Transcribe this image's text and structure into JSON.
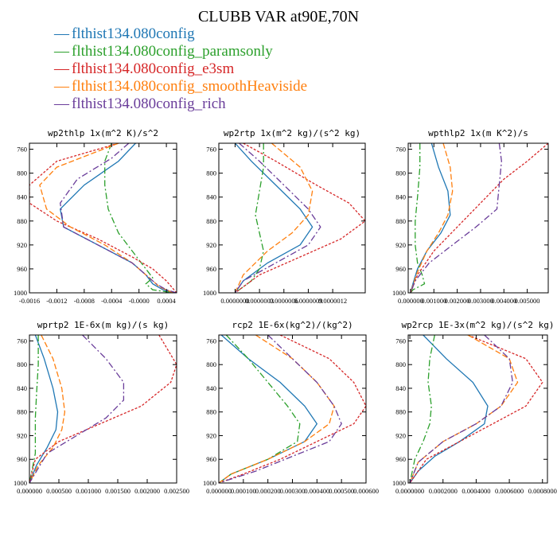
{
  "figure_title": "CLUBB VAR at90E,70N",
  "colors": {
    "flthist134.080config": "#1f77b4",
    "flthist134.080config_paramsonly": "#2ca02c",
    "flthist134.080config_e3sm": "#d62728",
    "flthist134.080config_smoothHeaviside": "#ff7f0e",
    "flthist134.080config_rich": "#6a3d9a"
  },
  "legend": [
    {
      "label": "flthist134.080config",
      "mark": "—"
    },
    {
      "label": "flthist134.080config_paramsonly",
      "mark": "—"
    },
    {
      "label": "flthist134.080config_e3sm",
      "mark": "—"
    },
    {
      "label": "flthist134.080config_smoothHeaviside",
      "mark": "—"
    },
    {
      "label": "flthist134.080config_rich",
      "mark": "—"
    }
  ],
  "chart_data": [
    {
      "type": "line",
      "title": "wp2thlp  1x(m^2 K)/s^2",
      "xlim": [
        -0.0016,
        0.00055
      ],
      "ylim": [
        1000,
        750
      ],
      "xticks": [
        -0.0016,
        -0.0012,
        -0.0008,
        -0.0004,
        -0.0,
        0.0004
      ],
      "xtick_labels": [
        "-0.0016",
        "-0.0012",
        "-0.0008",
        "-0.0004",
        "-0.0000",
        "0.0004"
      ],
      "yticks": [
        760,
        800,
        840,
        880,
        920,
        960,
        1000
      ],
      "series": [
        {
          "name": "flthist134.080config",
          "dash": "",
          "x": [
            -5e-05,
            -0.0003,
            -0.0008,
            -0.00115,
            -0.0011,
            -0.0006,
            -0.0001,
            0.0001,
            0.0002,
            0.00035,
            0.0005
          ],
          "y": [
            750,
            780,
            820,
            860,
            890,
            920,
            950,
            970,
            985,
            995,
            1000
          ]
        },
        {
          "name": "flthist134.080config_paramsonly",
          "dash": "8,3,2,3",
          "x": [
            -0.0004,
            -0.0005,
            -0.0005,
            -0.00045,
            -0.0003,
            -0.0001,
            0.0001,
            0.0002,
            0.0001,
            0.0002,
            0.0005
          ],
          "y": [
            750,
            780,
            820,
            860,
            900,
            930,
            960,
            975,
            985,
            995,
            1000
          ]
        },
        {
          "name": "flthist134.080config_e3sm",
          "dash": "3,2",
          "x": [
            -0.0003,
            -0.0012,
            -0.0016,
            -0.0016,
            -0.0012,
            -0.0006,
            -0.0001,
            0.0002,
            0.0004,
            0.00055
          ],
          "y": [
            750,
            780,
            820,
            850,
            880,
            910,
            940,
            960,
            980,
            1000
          ]
        },
        {
          "name": "flthist134.080config_smoothHeaviside",
          "dash": "7,3",
          "x": [
            -0.0003,
            -0.0012,
            -0.00145,
            -0.00135,
            -0.001,
            -0.0005,
            -0.0001,
            0.0001,
            0.0003,
            0.0005
          ],
          "y": [
            750,
            790,
            820,
            860,
            890,
            920,
            950,
            970,
            990,
            1000
          ]
        },
        {
          "name": "flthist134.080config_rich",
          "dash": "8,3,2,3",
          "x": [
            -0.00015,
            -0.0004,
            -0.0009,
            -0.00115,
            -0.0011,
            -0.0006,
            -0.0001,
            0.0001,
            0.00025,
            0.0004,
            0.00055
          ],
          "y": [
            750,
            775,
            810,
            850,
            890,
            920,
            950,
            970,
            985,
            995,
            1000
          ]
        }
      ]
    },
    {
      "type": "line",
      "title": "wp2rtp  1x(m^2 kg)/(s^2 kg)",
      "xlim": [
        -2e-07,
        1.6e-06
      ],
      "ylim": [
        1000,
        750
      ],
      "xticks": [
        0.0,
        3e-07,
        6e-07,
        9e-07,
        1.2e-06
      ],
      "xtick_labels": [
        "0.0000000",
        "0.0000003",
        "0.0000006",
        "0.0000009",
        "0.0000012"
      ],
      "yticks": [
        760,
        800,
        840,
        880,
        920,
        960,
        1000
      ],
      "series": [
        {
          "name": "flthist134.080config",
          "dash": "",
          "x": [
            0.0,
            2e-07,
            5e-07,
            8e-07,
            9.5e-07,
            8e-07,
            4e-07,
            1e-07,
            0.0
          ],
          "y": [
            750,
            780,
            820,
            860,
            890,
            920,
            950,
            980,
            1000
          ]
        },
        {
          "name": "flthist134.080config_paramsonly",
          "dash": "8,3,2,3",
          "x": [
            3.5e-07,
            3.5e-07,
            3e-07,
            2.5e-07,
            3e-07,
            3.5e-07,
            3e-07,
            2e-07,
            1e-07,
            0.0
          ],
          "y": [
            750,
            790,
            830,
            870,
            900,
            930,
            960,
            980,
            990,
            1000
          ]
        },
        {
          "name": "flthist134.080config_e3sm",
          "dash": "3,2",
          "x": [
            1e-07,
            5e-07,
            1e-06,
            1.4e-06,
            1.6e-06,
            1.3e-06,
            8e-07,
            3e-07,
            0.0
          ],
          "y": [
            750,
            780,
            820,
            850,
            880,
            910,
            940,
            970,
            1000
          ]
        },
        {
          "name": "flthist134.080config_smoothHeaviside",
          "dash": "7,3",
          "x": [
            4.5e-07,
            8e-07,
            9.5e-07,
            9e-07,
            7e-07,
            4e-07,
            1e-07,
            0.0
          ],
          "y": [
            750,
            790,
            830,
            870,
            900,
            930,
            970,
            1000
          ]
        },
        {
          "name": "flthist134.080config_rich",
          "dash": "8,3,2,3",
          "x": [
            5e-08,
            3e-07,
            6e-07,
            9e-07,
            1.05e-06,
            9e-07,
            5e-07,
            1e-07,
            0.0
          ],
          "y": [
            750,
            780,
            820,
            860,
            890,
            920,
            950,
            980,
            1000
          ]
        }
      ]
    },
    {
      "type": "line",
      "title": "wpthlp2  1x(m K^2)/s",
      "xlim": [
        -0.0001,
        0.0059
      ],
      "ylim": [
        1000,
        750
      ],
      "xticks": [
        0.0,
        0.001,
        0.002,
        0.003,
        0.004,
        0.005
      ],
      "xtick_labels": [
        "0.000000",
        "0.001000",
        "0.002000",
        "0.003000",
        "0.004000",
        "0.005000"
      ],
      "yticks": [
        760,
        800,
        840,
        880,
        920,
        960,
        1000
      ],
      "series": [
        {
          "name": "flthist134.080config",
          "dash": "",
          "x": [
            0.0009,
            0.0012,
            0.0016,
            0.0017,
            0.0013,
            0.0007,
            0.0003,
            0.0001,
            0.0
          ],
          "y": [
            750,
            790,
            830,
            870,
            900,
            930,
            960,
            985,
            1000
          ]
        },
        {
          "name": "flthist134.080config_paramsonly",
          "dash": "8,3,2,3",
          "x": [
            0.0004,
            0.0004,
            0.0003,
            0.0002,
            0.0002,
            0.0003,
            0.0005,
            0.0006,
            0.0001,
            0.0
          ],
          "y": [
            750,
            790,
            840,
            880,
            920,
            950,
            970,
            985,
            995,
            1000
          ]
        },
        {
          "name": "flthist134.080config_e3sm",
          "dash": "3,2",
          "x": [
            0.0059,
            0.005,
            0.004,
            0.003,
            0.002,
            0.001,
            0.0003,
            0.0
          ],
          "y": [
            750,
            780,
            810,
            850,
            890,
            930,
            970,
            1000
          ]
        },
        {
          "name": "flthist134.080config_smoothHeaviside",
          "dash": "7,3",
          "x": [
            0.0014,
            0.0017,
            0.0018,
            0.0016,
            0.0012,
            0.0007,
            0.0003,
            0.0
          ],
          "y": [
            750,
            790,
            830,
            870,
            900,
            930,
            965,
            1000
          ]
        },
        {
          "name": "flthist134.080config_rich",
          "dash": "8,3,2,3",
          "x": [
            0.0038,
            0.0039,
            0.0038,
            0.0037,
            0.0028,
            0.0018,
            0.0008,
            0.0002,
            0.0
          ],
          "y": [
            750,
            780,
            820,
            860,
            890,
            920,
            950,
            980,
            1000
          ]
        }
      ]
    },
    {
      "type": "line",
      "title": "wprtp2  1E-6x(m kg)/(s kg)",
      "xlim": [
        0.0,
        0.0025
      ],
      "ylim": [
        1000,
        750
      ],
      "xticks": [
        0.0,
        0.0005,
        0.001,
        0.0015,
        0.002,
        0.0025
      ],
      "xtick_labels": [
        "0.000000",
        "0.000500",
        "0.001000",
        "0.001500",
        "0.002000",
        "0.002500"
      ],
      "yticks": [
        760,
        800,
        840,
        880,
        920,
        960,
        1000
      ],
      "series": [
        {
          "name": "flthist134.080config",
          "dash": "",
          "x": [
            0.0001,
            0.00025,
            0.0004,
            0.00048,
            0.00045,
            0.0003,
            0.00012,
            0.0
          ],
          "y": [
            750,
            790,
            840,
            880,
            910,
            940,
            970,
            1000
          ]
        },
        {
          "name": "flthist134.080config_paramsonly",
          "dash": "8,3,2,3",
          "x": [
            0.00015,
            0.00015,
            0.00012,
            0.0001,
            0.0001,
            0.0001,
            5e-05,
            0.0
          ],
          "y": [
            750,
            800,
            850,
            890,
            920,
            950,
            975,
            1000
          ]
        },
        {
          "name": "flthist134.080config_e3sm",
          "dash": "3,2",
          "x": [
            0.0022,
            0.0025,
            0.0024,
            0.0019,
            0.0012,
            0.0005,
            0.0001,
            0.0
          ],
          "y": [
            750,
            800,
            830,
            870,
            900,
            930,
            960,
            1000
          ]
        },
        {
          "name": "flthist134.080config_smoothHeaviside",
          "dash": "7,3",
          "x": [
            0.0002,
            0.0004,
            0.00055,
            0.0006,
            0.00055,
            0.0004,
            0.00015,
            0.0
          ],
          "y": [
            750,
            790,
            840,
            880,
            910,
            940,
            970,
            1000
          ]
        },
        {
          "name": "flthist134.080config_rich",
          "dash": "8,3,2,3",
          "x": [
            0.0009,
            0.0013,
            0.0016,
            0.0016,
            0.0013,
            0.0008,
            0.0003,
            0.0
          ],
          "y": [
            750,
            790,
            830,
            860,
            890,
            920,
            950,
            1000
          ]
        }
      ]
    },
    {
      "type": "line",
      "title": "rcp2  1E-6x(kg^2)/(kg^2)",
      "xlim": [
        0.0,
        0.0006
      ],
      "ylim": [
        1000,
        750
      ],
      "xticks": [
        0.0,
        0.0001,
        0.0002,
        0.0003,
        0.0004,
        0.0005,
        0.0006
      ],
      "xtick_labels": [
        "0.000000",
        "0.000100",
        "0.000200",
        "0.000300",
        "0.000400",
        "0.000500",
        "0.000600"
      ],
      "yticks": [
        760,
        800,
        840,
        880,
        920,
        960,
        1000
      ],
      "series": [
        {
          "name": "flthist134.080config",
          "dash": "",
          "x": [
            1e-05,
            0.00012,
            0.00025,
            0.00035,
            0.0004,
            0.00035,
            0.0002,
            5e-05,
            0.0
          ],
          "y": [
            750,
            790,
            830,
            870,
            900,
            930,
            960,
            985,
            1000
          ]
        },
        {
          "name": "flthist134.080config_paramsonly",
          "dash": "8,3,2,3",
          "x": [
            3e-05,
            0.00012,
            0.0002,
            0.00028,
            0.00033,
            0.00032,
            0.0002,
            5e-05,
            0.0
          ],
          "y": [
            750,
            790,
            830,
            870,
            900,
            930,
            960,
            985,
            1000
          ]
        },
        {
          "name": "flthist134.080config_e3sm",
          "dash": "3,2",
          "x": [
            0.00025,
            0.00045,
            0.00055,
            0.0006,
            0.00055,
            0.0004,
            0.00025,
            0.0001,
            0.0
          ],
          "y": [
            750,
            790,
            830,
            870,
            900,
            930,
            960,
            985,
            1000
          ]
        },
        {
          "name": "flthist134.080config_smoothHeaviside",
          "dash": "7,3",
          "x": [
            0.00015,
            0.0003,
            0.0004,
            0.00047,
            0.00045,
            0.00035,
            0.0002,
            5e-05,
            0.0
          ],
          "y": [
            750,
            790,
            830,
            870,
            900,
            930,
            960,
            985,
            1000
          ]
        },
        {
          "name": "flthist134.080config_rich",
          "dash": "8,3,2,3",
          "x": [
            0.0002,
            0.0003,
            0.0004,
            0.00047,
            0.0005,
            0.00045,
            0.0003,
            0.00015,
            0.0
          ],
          "y": [
            750,
            790,
            830,
            870,
            900,
            930,
            955,
            980,
            1000
          ]
        }
      ]
    },
    {
      "type": "line",
      "title": "wp2rcp  1E-3x(m^2 kg)/(s^2 kg)",
      "xlim": [
        -1e-05,
        0.00083
      ],
      "ylim": [
        1000,
        750
      ],
      "xticks": [
        0.0,
        0.0002,
        0.0004,
        0.0006,
        0.0008
      ],
      "xtick_labels": [
        "0.0000000",
        "0.0002000",
        "0.0004000",
        "0.0006000",
        "0.0008000"
      ],
      "yticks": [
        760,
        800,
        840,
        880,
        920,
        960,
        1000
      ],
      "series": [
        {
          "name": "flthist134.080config",
          "dash": "",
          "x": [
            8e-05,
            0.00022,
            0.00038,
            0.00047,
            0.00045,
            0.0003,
            0.00015,
            5e-05,
            0.0
          ],
          "y": [
            750,
            790,
            830,
            870,
            900,
            930,
            955,
            980,
            1000
          ]
        },
        {
          "name": "flthist134.080config_paramsonly",
          "dash": "8,3,2,3",
          "x": [
            0.00015,
            0.00012,
            0.00011,
            0.00013,
            0.00012,
            8e-05,
            3e-05,
            0.0
          ],
          "y": [
            750,
            790,
            830,
            870,
            900,
            930,
            960,
            1000
          ]
        },
        {
          "name": "flthist134.080config_e3sm",
          "dash": "3,2",
          "x": [
            0.00035,
            0.0007,
            0.0008,
            0.0007,
            0.0005,
            0.0003,
            0.0001,
            0.0
          ],
          "y": [
            750,
            790,
            830,
            870,
            900,
            930,
            960,
            1000
          ]
        },
        {
          "name": "flthist134.080config_smoothHeaviside",
          "dash": "7,3",
          "x": [
            0.00035,
            0.0006,
            0.00065,
            0.00055,
            0.0004,
            0.0002,
            5e-05,
            0.0
          ],
          "y": [
            750,
            790,
            830,
            870,
            900,
            930,
            965,
            1000
          ]
        },
        {
          "name": "flthist134.080config_rich",
          "dash": "8,3,2,3",
          "x": [
            0.00045,
            0.0006,
            0.00062,
            0.00055,
            0.0004,
            0.0002,
            5e-05,
            0.0
          ],
          "y": [
            750,
            790,
            830,
            870,
            900,
            930,
            965,
            1000
          ]
        }
      ]
    }
  ]
}
